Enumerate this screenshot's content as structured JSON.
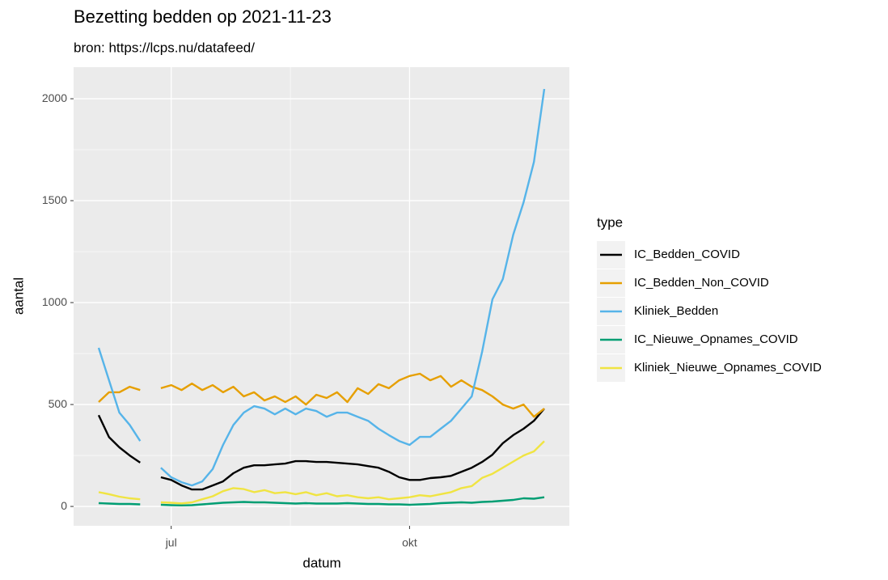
{
  "chart_data": {
    "type": "line",
    "title": "Bezetting bedden op 2021-11-23",
    "subtitle": "bron: https://lcps.nu/datafeed/",
    "x_label": "datum",
    "y_label": "aantal",
    "legend_title": "type",
    "categories": [
      null,
      null,
      null,
      null,
      null,
      null,
      null,
      "jul",
      null,
      null,
      null,
      null,
      null,
      null,
      null,
      null,
      null,
      null,
      null,
      null,
      null,
      null,
      null,
      null,
      null,
      null,
      null,
      null,
      null,
      null,
      "okt",
      null,
      null,
      null,
      null,
      null,
      null,
      null,
      null,
      null,
      null,
      null,
      null,
      null
    ],
    "series": [
      {
        "name": "IC_Bedden_COVID",
        "color": "#000000",
        "values": [
          448,
          340,
          290,
          250,
          215,
          null,
          143,
          130,
          103,
          83,
          83,
          103,
          123,
          163,
          190,
          202,
          202,
          206,
          210,
          222,
          222,
          218,
          218,
          214,
          210,
          206,
          198,
          190,
          170,
          143,
          130,
          130,
          139,
          143,
          150,
          170,
          190,
          218,
          254,
          310,
          350,
          381,
          420,
          480
        ]
      },
      {
        "name": "IC_Bedden_Non_COVID",
        "color": "#E69F00",
        "values": [
          512,
          560,
          560,
          587,
          571,
          null,
          580,
          595,
          571,
          603,
          571,
          595,
          560,
          587,
          540,
          560,
          520,
          540,
          512,
          540,
          500,
          548,
          532,
          560,
          512,
          580,
          552,
          600,
          580,
          619,
          640,
          651,
          619,
          640,
          587,
          619,
          587,
          571,
          540,
          500,
          480,
          500,
          440,
          480
        ]
      },
      {
        "name": "Kliniek_Bedden",
        "color": "#56B4E9",
        "values": [
          778,
          619,
          460,
          400,
          321,
          null,
          190,
          143,
          119,
          103,
          123,
          183,
          302,
          400,
          460,
          492,
          480,
          452,
          480,
          452,
          480,
          468,
          440,
          460,
          460,
          440,
          420,
          381,
          350,
          321,
          302,
          341,
          341,
          381,
          420,
          480,
          540,
          758,
          1016,
          1115,
          1333,
          1492,
          1690,
          2048
        ]
      },
      {
        "name": "IC_Nieuwe_Opnames_COVID",
        "color": "#009E73",
        "values": [
          16,
          14,
          12,
          12,
          10,
          null,
          8,
          6,
          5,
          6,
          10,
          14,
          18,
          20,
          22,
          20,
          20,
          18,
          16,
          14,
          16,
          14,
          14,
          14,
          16,
          14,
          12,
          12,
          10,
          10,
          8,
          10,
          12,
          16,
          18,
          20,
          18,
          22,
          24,
          28,
          32,
          40,
          38,
          45
        ]
      },
      {
        "name": "Kliniek_Nieuwe_Opnames_COVID",
        "color": "#F0E442",
        "values": [
          70,
          60,
          48,
          40,
          35,
          null,
          20,
          18,
          15,
          20,
          35,
          50,
          75,
          90,
          85,
          70,
          80,
          65,
          70,
          60,
          70,
          55,
          65,
          50,
          55,
          45,
          40,
          45,
          35,
          40,
          45,
          55,
          50,
          60,
          70,
          90,
          100,
          140,
          160,
          190,
          220,
          250,
          270,
          320
        ]
      }
    ],
    "ylim": [
      -95,
      2155
    ],
    "yticks": [
      0,
      500,
      1000,
      1500,
      2000
    ],
    "grid": true
  }
}
